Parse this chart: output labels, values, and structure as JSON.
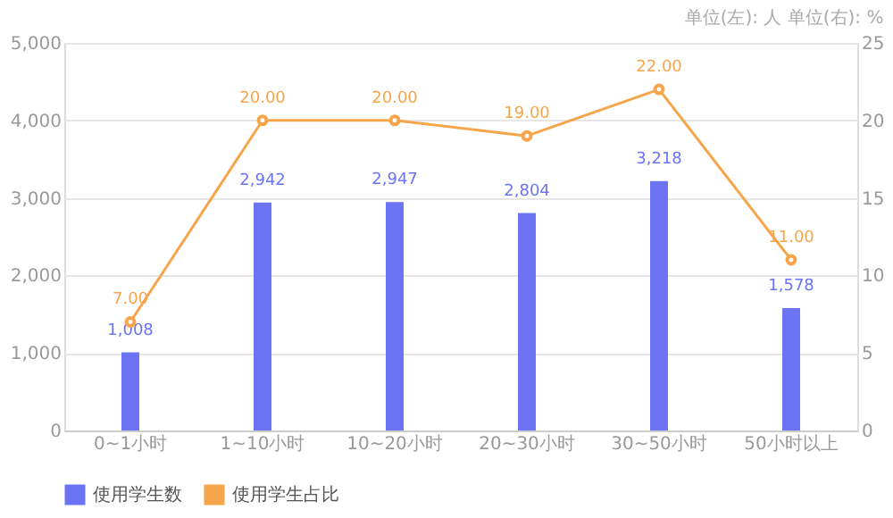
{
  "chart_data": {
    "type": "bar",
    "annotations": [
      "单位(左): 人   单位(右): %"
    ],
    "categories": [
      "0~1小时",
      "1~10小时",
      "10~20小时",
      "20~30小时",
      "30~50小时",
      "50小时以上"
    ],
    "series": [
      {
        "name": "使用学生数",
        "color": "#6c74f4",
        "values": [
          1008,
          2942,
          2947,
          2804,
          3218,
          1578
        ],
        "value_labels": [
          "1,008",
          "2,942",
          "2,947",
          "2,804",
          "3,218",
          "1,578"
        ]
      },
      {
        "name": "使用学生占比",
        "type": "line",
        "axis": "y2",
        "color": "#f7a54a",
        "marker": "circle",
        "values": [
          7,
          20,
          20,
          19,
          22,
          11
        ],
        "value_labels": [
          "7.00",
          "20.00",
          "20.00",
          "19.00",
          "22.00",
          "11.00"
        ]
      }
    ],
    "ylim": [
      0,
      5000
    ],
    "yticks": [
      {
        "value": 0,
        "label": "0"
      },
      {
        "value": 1000,
        "label": "1,000"
      },
      {
        "value": 2000,
        "label": "2,000"
      },
      {
        "value": 3000,
        "label": "3,000"
      },
      {
        "value": 4000,
        "label": "4,000"
      },
      {
        "value": 5000,
        "label": "5,000"
      }
    ],
    "y2lim": [
      0,
      25
    ],
    "y2ticks": [
      0,
      5,
      10,
      15,
      20,
      25
    ],
    "grid": "y",
    "legend": "bottom left"
  }
}
